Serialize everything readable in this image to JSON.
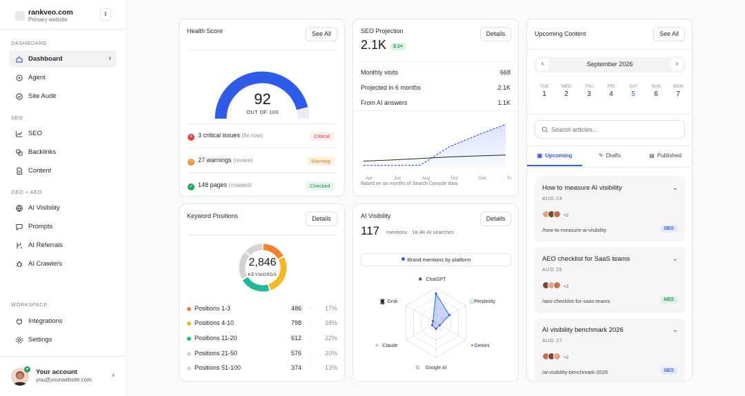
{
  "workspace": {
    "name": "rankveo.com",
    "sub": "Primary website"
  },
  "sidebar": {
    "sections": [
      {
        "label": "DASHBOARD"
      },
      {
        "label": "SEO"
      },
      {
        "label": "GEO + AEO"
      },
      {
        "label": "WORKSPACE"
      }
    ],
    "items": [
      {
        "label": "Dashboard",
        "icon": "home-icon",
        "active": true
      },
      {
        "label": "Agent",
        "icon": "agent-icon"
      },
      {
        "label": "Site Audit",
        "icon": "audit-icon"
      },
      {
        "label": "SEO",
        "icon": "trend-icon"
      },
      {
        "label": "Backlinks",
        "icon": "link-icon"
      },
      {
        "label": "Content",
        "icon": "document-icon"
      },
      {
        "label": "AI Visibility",
        "icon": "globe-icon"
      },
      {
        "label": "Prompts",
        "icon": "chat-icon"
      },
      {
        "label": "AI Referrals",
        "icon": "branch-icon"
      },
      {
        "label": "AI Crawlers",
        "icon": "bug-icon"
      },
      {
        "label": "Integrations",
        "icon": "plug-icon"
      },
      {
        "label": "Settings",
        "icon": "gear-icon"
      }
    ]
  },
  "account": {
    "name": "Your account",
    "email": "you@yourwebsite.com"
  },
  "health": {
    "title": "Health Score",
    "button": "See All",
    "score": "92",
    "score_sub": "OUT OF 100",
    "score_value": 92,
    "issues": [
      {
        "count": "3 critical issues",
        "note": "(fix now)",
        "badge": "Critical"
      },
      {
        "count": "27 warnings",
        "note": "(review)",
        "badge": "Warning"
      },
      {
        "count": "148 pages",
        "note": "(crawled)",
        "badge": "Checked"
      }
    ]
  },
  "projection": {
    "title": "SEO Projection",
    "button": "Details",
    "value": "2.1K",
    "multiplier": "3.1×",
    "stats": [
      {
        "label": "Monthly visits",
        "value": "668"
      },
      {
        "label": "Projected in 6 months",
        "value": "2.1K"
      },
      {
        "label": "From AI answers",
        "value": "1.1K"
      }
    ],
    "footnote": "Based on six months of Search Console data"
  },
  "keywords": {
    "title": "Keyword Positions",
    "button": "Details",
    "total": "2,846",
    "total_label": "KEYWORDS",
    "rows": [
      {
        "label": "Positions 1-3",
        "value": "486",
        "pct": "17%",
        "color": "#f5822a"
      },
      {
        "label": "Positions 4-10",
        "value": "798",
        "pct": "28%",
        "color": "#f2b81e"
      },
      {
        "label": "Positions 11-20",
        "value": "612",
        "pct": "22%",
        "color": "#21b89c"
      },
      {
        "label": "Positions 21-50",
        "value": "576",
        "pct": "20%",
        "color": "#d3d3d6"
      },
      {
        "label": "Positions 51-100",
        "value": "374",
        "pct": "13%",
        "color": "#d3d3d6"
      }
    ]
  },
  "ai_visibility": {
    "title": "AI Visibility",
    "button": "Details",
    "value": "117",
    "sub": "mentions · 18.4K AI searches",
    "chip": "Brand mentions by platform"
  },
  "upcoming": {
    "title": "Upcoming Content",
    "button": "See All",
    "month": "September 2026",
    "days": [
      {
        "name": "TUE",
        "num": "1"
      },
      {
        "name": "WED",
        "num": "2"
      },
      {
        "name": "THU",
        "num": "3"
      },
      {
        "name": "FRI",
        "num": "4"
      },
      {
        "name": "SAT",
        "num": "5"
      },
      {
        "name": "SUN",
        "num": "6"
      },
      {
        "name": "MON",
        "num": "7"
      }
    ],
    "search_placeholder": "Search articles...",
    "tabs": [
      {
        "label": "Upcoming"
      },
      {
        "label": "Drafts"
      },
      {
        "label": "Published"
      }
    ],
    "items": [
      {
        "title": "How to measure AI visibility",
        "date": "AUG 24",
        "extra": "+2",
        "slug": "/how-to-measure-ai-visibility",
        "tag": "SEO"
      },
      {
        "title": "AEO checklist for SaaS teams",
        "date": "AUG 25",
        "extra": "+2",
        "slug": "/aeo-checklist-for-saas-teams",
        "tag": "AEO"
      },
      {
        "title": "AI visibility benchmark 2026",
        "date": "AUG 27",
        "extra": "+2",
        "slug": "/ai-visibility-benchmark-2026",
        "tag": "SEO"
      }
    ]
  },
  "chart_data": [
    {
      "type": "gauge",
      "value": 92,
      "ylim": [
        0,
        100
      ]
    },
    {
      "type": "line",
      "categories": [
        "Apr",
        "Jun",
        "Aug",
        "Oct",
        "Dec",
        "Feb"
      ],
      "series": [
        {
          "values": [
            400,
            450,
            520,
            590,
            640,
            680
          ]
        },
        {
          "values": [
            200,
            200,
            210,
            1050,
            1600,
            2100
          ]
        }
      ]
    },
    {
      "type": "pie",
      "categories": [
        "Positions 1-3",
        "Positions 4-10",
        "Positions 11-20",
        "Positions 21-50",
        "Positions 51-100"
      ],
      "values": [
        486,
        798,
        612,
        576,
        374
      ]
    },
    {
      "type": "radar",
      "categories": [
        "ChatGPT",
        "Perplexity",
        "Gemini",
        "Google AI",
        "Claude",
        "Grok"
      ],
      "values": [
        0.85,
        0.45,
        0.13,
        0.17,
        0.13,
        0.1
      ],
      "ylim": [
        0,
        1
      ]
    }
  ]
}
